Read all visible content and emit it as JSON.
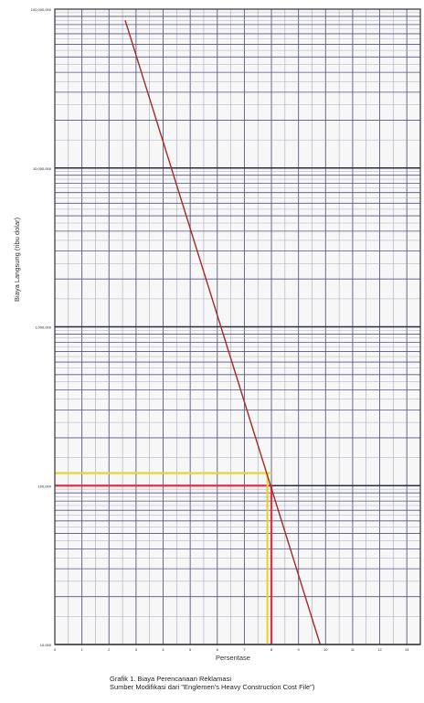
{
  "chart_data": {
    "type": "line",
    "title": "",
    "xlabel": "Persentase",
    "ylabel": "Biaya Langsung (ribu dolar)",
    "x_ticks": [
      "0",
      "1",
      "2",
      "3",
      "4",
      "5",
      "6",
      "7",
      "8",
      "9",
      "10",
      "11",
      "12",
      "13"
    ],
    "y_ticks": [
      {
        "value": 100000000,
        "label": "100,000,000"
      },
      {
        "value": 10000000,
        "label": "10,000,000"
      },
      {
        "value": 1000000,
        "label": "1,000,000"
      },
      {
        "value": 100000,
        "label": "100,000"
      },
      {
        "value": 10000,
        "label": "10,000"
      }
    ],
    "xlim": [
      0,
      13.5
    ],
    "ylim": [
      10000,
      100000000
    ],
    "y_scale": "log",
    "grid": true,
    "series": [
      {
        "color": "#a32a2a",
        "points": [
          [
            2.6,
            85000000
          ],
          [
            9.8,
            10000
          ]
        ]
      }
    ],
    "reference_lines": [
      {
        "color": "#e8d23a",
        "type": "horizontal",
        "y": 120000,
        "x_range": [
          0,
          8.0
        ]
      },
      {
        "color": "#e0304a",
        "type": "horizontal",
        "y": 100000,
        "x_range": [
          0,
          8.0
        ]
      },
      {
        "color": "#e8d23a",
        "type": "vertical",
        "x": 7.85,
        "y_range": [
          10000,
          120000
        ]
      },
      {
        "color": "#e0304a",
        "type": "vertical",
        "x": 8.0,
        "y_range": [
          10000,
          100000
        ]
      }
    ]
  },
  "caption": {
    "line1": "Grafik 1. Biaya Perencanaan Reklamasi",
    "line2": "Sumber Modifikasi dari \"Englemen's Heavy Construction Cost File\")"
  }
}
